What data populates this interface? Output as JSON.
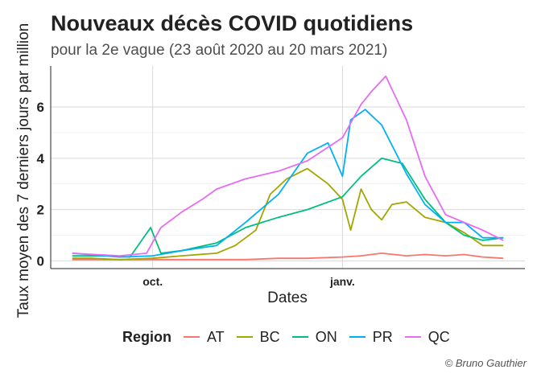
{
  "chart_data": {
    "type": "line",
    "title": "Nouveaux décès COVID quotidiens",
    "subtitle": "pour la 2e vague (23 août 2020 au 20 mars 2021)",
    "xlabel": "Dates",
    "ylabel": "Taux moyen des 7 derniers jours par million",
    "xlim": [
      "2020-08-23",
      "2021-03-20"
    ],
    "ylim": [
      0,
      7.3
    ],
    "x_ticks": [
      {
        "date": "2020-10-01",
        "label": "oct."
      },
      {
        "date": "2021-01-01",
        "label": "janv."
      }
    ],
    "y_ticks": [
      0,
      2,
      4,
      6
    ],
    "grid": true,
    "legend_title": "Region",
    "legend_position": "bottom",
    "caption": "© Bruno Gauthier",
    "series": [
      {
        "name": "AT",
        "color": "#F8766D",
        "x": [
          "2020-08-23",
          "2020-09-15",
          "2020-10-01",
          "2020-10-15",
          "2020-11-01",
          "2020-11-15",
          "2020-12-01",
          "2020-12-15",
          "2021-01-01",
          "2021-01-10",
          "2021-01-20",
          "2021-02-01",
          "2021-02-10",
          "2021-02-20",
          "2021-03-01",
          "2021-03-10",
          "2021-03-20"
        ],
        "values": [
          0.05,
          0.05,
          0.05,
          0.05,
          0.05,
          0.05,
          0.1,
          0.1,
          0.15,
          0.2,
          0.3,
          0.2,
          0.25,
          0.2,
          0.25,
          0.15,
          0.1
        ]
      },
      {
        "name": "BC",
        "color": "#A3A500",
        "x": [
          "2020-08-23",
          "2020-09-01",
          "2020-09-15",
          "2020-10-01",
          "2020-10-15",
          "2020-11-01",
          "2020-11-10",
          "2020-11-20",
          "2020-11-27",
          "2020-12-05",
          "2020-12-15",
          "2020-12-25",
          "2021-01-01",
          "2021-01-05",
          "2021-01-10",
          "2021-01-15",
          "2021-01-20",
          "2021-01-25",
          "2021-02-01",
          "2021-02-10",
          "2021-02-20",
          "2021-03-01",
          "2021-03-10",
          "2021-03-20"
        ],
        "values": [
          0.1,
          0.1,
          0.05,
          0.1,
          0.2,
          0.3,
          0.6,
          1.2,
          2.6,
          3.2,
          3.6,
          3.0,
          2.4,
          1.2,
          2.8,
          2.0,
          1.6,
          2.2,
          2.3,
          1.7,
          1.5,
          1.1,
          0.6,
          0.6
        ]
      },
      {
        "name": "ON",
        "color": "#00BF7D",
        "x": [
          "2020-08-23",
          "2020-09-10",
          "2020-09-20",
          "2020-09-30",
          "2020-10-05",
          "2020-10-15",
          "2020-11-01",
          "2020-11-15",
          "2020-12-01",
          "2020-12-15",
          "2021-01-01",
          "2021-01-10",
          "2021-01-20",
          "2021-01-30",
          "2021-02-10",
          "2021-02-20",
          "2021-03-01",
          "2021-03-10",
          "2021-03-20"
        ],
        "values": [
          0.2,
          0.2,
          0.15,
          1.3,
          0.3,
          0.4,
          0.7,
          1.3,
          1.7,
          2.0,
          2.5,
          3.3,
          4.0,
          3.8,
          2.4,
          1.5,
          1.0,
          0.8,
          0.9
        ]
      },
      {
        "name": "PR",
        "color": "#00B0F6",
        "x": [
          "2020-08-23",
          "2020-09-15",
          "2020-10-01",
          "2020-10-15",
          "2020-11-01",
          "2020-11-15",
          "2020-12-01",
          "2020-12-15",
          "2020-12-25",
          "2021-01-01",
          "2021-01-05",
          "2021-01-12",
          "2021-01-20",
          "2021-02-01",
          "2021-02-10",
          "2021-02-20",
          "2021-03-01",
          "2021-03-10",
          "2021-03-20"
        ],
        "values": [
          0.3,
          0.15,
          0.2,
          0.4,
          0.6,
          1.5,
          2.6,
          4.2,
          4.6,
          3.3,
          5.5,
          5.9,
          5.3,
          3.4,
          2.2,
          1.5,
          1.5,
          0.9,
          0.9
        ]
      },
      {
        "name": "QC",
        "color": "#E76BF3",
        "x": [
          "2020-08-23",
          "2020-09-15",
          "2020-09-28",
          "2020-10-05",
          "2020-10-15",
          "2020-10-25",
          "2020-11-01",
          "2020-11-15",
          "2020-12-01",
          "2020-12-15",
          "2021-01-01",
          "2021-01-10",
          "2021-01-15",
          "2021-01-22",
          "2021-02-01",
          "2021-02-10",
          "2021-02-20",
          "2021-03-01",
          "2021-03-10",
          "2021-03-20"
        ],
        "values": [
          0.3,
          0.2,
          0.3,
          1.3,
          1.9,
          2.4,
          2.8,
          3.2,
          3.5,
          3.9,
          4.8,
          6.1,
          6.6,
          7.2,
          5.5,
          3.3,
          1.8,
          1.5,
          1.2,
          0.8
        ]
      }
    ]
  }
}
